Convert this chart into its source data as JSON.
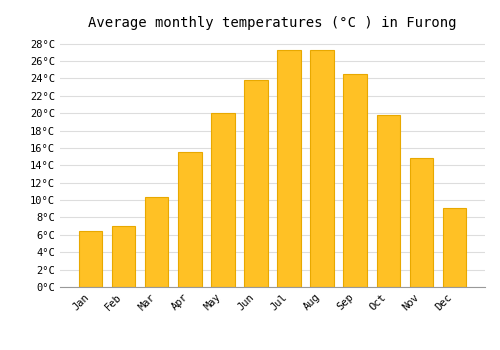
{
  "title": "Average monthly temperatures (°C ) in Furong",
  "months": [
    "Jan",
    "Feb",
    "Mar",
    "Apr",
    "May",
    "Jun",
    "Jul",
    "Aug",
    "Sep",
    "Oct",
    "Nov",
    "Dec"
  ],
  "values": [
    6.5,
    7.0,
    10.3,
    15.5,
    20.0,
    23.8,
    27.3,
    27.3,
    24.5,
    19.8,
    14.8,
    9.1
  ],
  "bar_color": "#FFC125",
  "bar_edge_color": "#E8A800",
  "background_color": "#FFFFFF",
  "plot_bg_color": "#FFFFFF",
  "grid_color": "#DDDDDD",
  "ylim": [
    0,
    29
  ],
  "ytick_step": 2,
  "title_fontsize": 10,
  "tick_fontsize": 7.5,
  "font_family": "monospace"
}
